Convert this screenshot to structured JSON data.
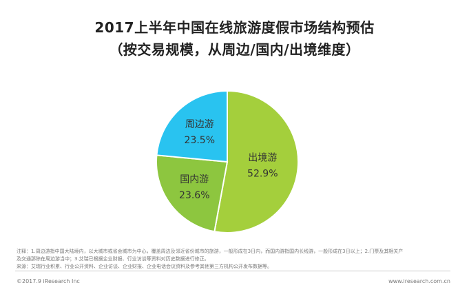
{
  "chart_data": {
    "type": "pie",
    "title": "2017上半年中国在线旅游度假市场结构预估",
    "subtitle": "（按交易规模，从周边/国内/出境维度）",
    "slices": [
      {
        "label": "出境游",
        "value": 52.9,
        "display": "52.9%",
        "color": "#a4cf3c"
      },
      {
        "label": "国内游",
        "value": 23.6,
        "display": "23.6%",
        "color": "#8dc63f"
      },
      {
        "label": "周边游",
        "value": 23.5,
        "display": "23.5%",
        "color": "#29c3f0"
      }
    ]
  },
  "notes": {
    "line1": "注释：1.周边游指中国大陆境内，以大城市或省会城市为中心，覆盖周边及邻近省份城市的旅游，一般形成在3日内，而国内游指国内长线游，一般形成在3日以上；2.门票及其相关产",
    "line2": "及交通那除在周边游当中；3.艾瑞已根据企业财报、行业访谈等资料对历史数据进行修正。",
    "line3": "来源：艾瑞行业积累、行业公开资料、企业访谈、企业财报、企业电话会议资料及参考其他第三方机构公开发布数据等。"
  },
  "footer": {
    "copyright": "©2017.9 iResearch Inc",
    "website": "www.iresearch.com.cn"
  }
}
